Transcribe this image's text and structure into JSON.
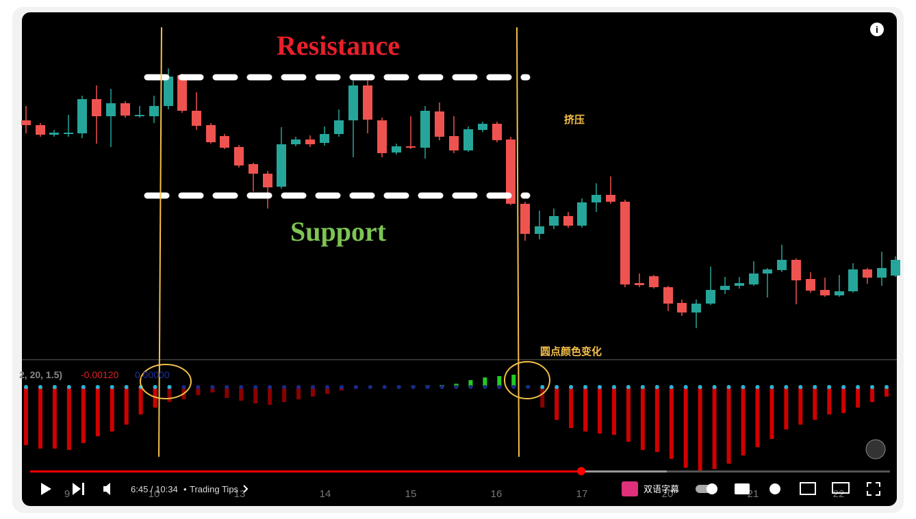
{
  "overlay": {
    "resistance": "Resistance",
    "support": "Support",
    "squeeze": "挤压",
    "dot_color_change": "圆点颜色变化"
  },
  "indicator": {
    "params": "2, 20, 1.5)",
    "value_a": "-0.00120",
    "value_b": "0.00000"
  },
  "x_axis": [
    "9",
    "10",
    "13",
    "14",
    "15",
    "16",
    "17",
    "20",
    "21",
    "22"
  ],
  "player": {
    "time": "6:45 / 10:34",
    "chapter": "Trading Tips",
    "subtitles": "双语字幕"
  }
}
